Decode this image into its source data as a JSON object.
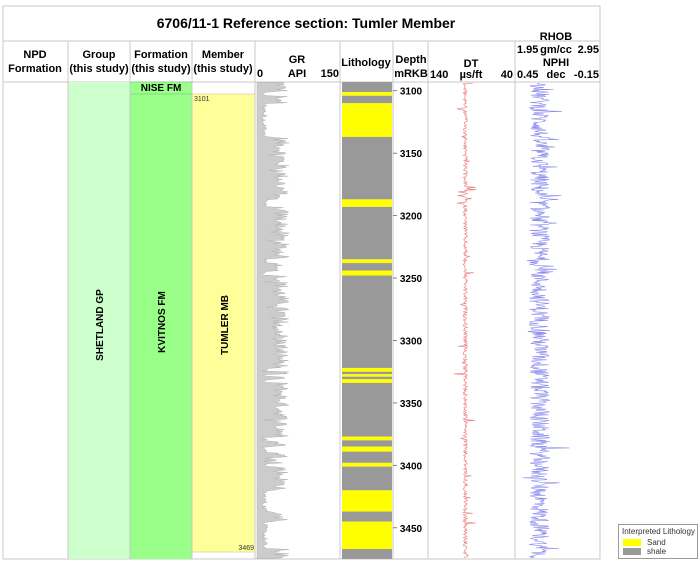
{
  "title": "6706/11-1 Reference section: Tumler Member",
  "headers": {
    "npd": [
      "NPD",
      "Formation"
    ],
    "group": [
      "Group",
      "(this study)"
    ],
    "formation": [
      "Formation",
      "(this study)"
    ],
    "member": [
      "Member",
      "(this study)"
    ],
    "gr": {
      "name": "GR",
      "unit": "API",
      "min": "0",
      "max": "150"
    },
    "lithology": "Lithology",
    "depth": [
      "Depth",
      "mRKB"
    ],
    "dt": {
      "name": "DT",
      "unit": "µs/ft",
      "min": "140",
      "max": "40"
    },
    "rhob": {
      "name": "RHOB",
      "unit": "gm/cc",
      "min": "1.95",
      "max": "2.95"
    },
    "nphi": {
      "name": "NPHI",
      "unit": "dec",
      "min": "0.45",
      "max": "-0.15"
    }
  },
  "columns": {
    "group": "SHETLAND GP",
    "formation_top": "NISE FM",
    "formation": "KVITNOS FM",
    "member": "TUMLER MB",
    "member_top": "3101",
    "member_base": "3469"
  },
  "depth_ticks": [
    "3100",
    "3150",
    "3200",
    "3250",
    "3300",
    "3350",
    "3400",
    "3450"
  ],
  "legend": {
    "title": "Interpreted Lithology",
    "items": [
      {
        "label": "Sand",
        "color": "#ffff00"
      },
      {
        "label": "shale",
        "color": "#999999"
      }
    ]
  },
  "colors": {
    "group_fill": "#ccffcc",
    "formation_fill": "#99ff88",
    "member_fill": "#ffff99",
    "sand": "#ffff00",
    "shale": "#999999",
    "gr_fill": "#cccccc",
    "dt_curve": "#ee8888",
    "rhob_curve": "#8888ee"
  },
  "chart_data": {
    "type": "well log",
    "depth_range_m": [
      3093,
      3475
    ],
    "lithology_intervals_m": [
      {
        "top": 3093,
        "base": 3101,
        "lith": "shale"
      },
      {
        "top": 3101,
        "base": 3104,
        "lith": "sand"
      },
      {
        "top": 3104,
        "base": 3110,
        "lith": "shale"
      },
      {
        "top": 3110,
        "base": 3137,
        "lith": "sand"
      },
      {
        "top": 3137,
        "base": 3187,
        "lith": "shale"
      },
      {
        "top": 3187,
        "base": 3193,
        "lith": "sand"
      },
      {
        "top": 3193,
        "base": 3235,
        "lith": "shale"
      },
      {
        "top": 3235,
        "base": 3238,
        "lith": "sand"
      },
      {
        "top": 3238,
        "base": 3244,
        "lith": "shale"
      },
      {
        "top": 3244,
        "base": 3248,
        "lith": "sand"
      },
      {
        "top": 3248,
        "base": 3322,
        "lith": "shale"
      },
      {
        "top": 3322,
        "base": 3325,
        "lith": "sand"
      },
      {
        "top": 3325,
        "base": 3327,
        "lith": "shale"
      },
      {
        "top": 3327,
        "base": 3329,
        "lith": "sand"
      },
      {
        "top": 3329,
        "base": 3331,
        "lith": "shale"
      },
      {
        "top": 3331,
        "base": 3334,
        "lith": "sand"
      },
      {
        "top": 3334,
        "base": 3377,
        "lith": "shale"
      },
      {
        "top": 3377,
        "base": 3380,
        "lith": "sand"
      },
      {
        "top": 3380,
        "base": 3385,
        "lith": "shale"
      },
      {
        "top": 3385,
        "base": 3389,
        "lith": "sand"
      },
      {
        "top": 3389,
        "base": 3398,
        "lith": "shale"
      },
      {
        "top": 3398,
        "base": 3401,
        "lith": "sand"
      },
      {
        "top": 3401,
        "base": 3420,
        "lith": "shale"
      },
      {
        "top": 3420,
        "base": 3437,
        "lith": "sand"
      },
      {
        "top": 3437,
        "base": 3445,
        "lith": "shale"
      },
      {
        "top": 3445,
        "base": 3467,
        "lith": "sand"
      },
      {
        "top": 3467,
        "base": 3475,
        "lith": "shale"
      }
    ],
    "gr_api_typical": [
      30,
      60
    ],
    "gr_api_sand": [
      8,
      20
    ],
    "dt_us_ft_typical": [
      95,
      100
    ],
    "rhob_gcc_typical": [
      2.1,
      2.35
    ]
  }
}
